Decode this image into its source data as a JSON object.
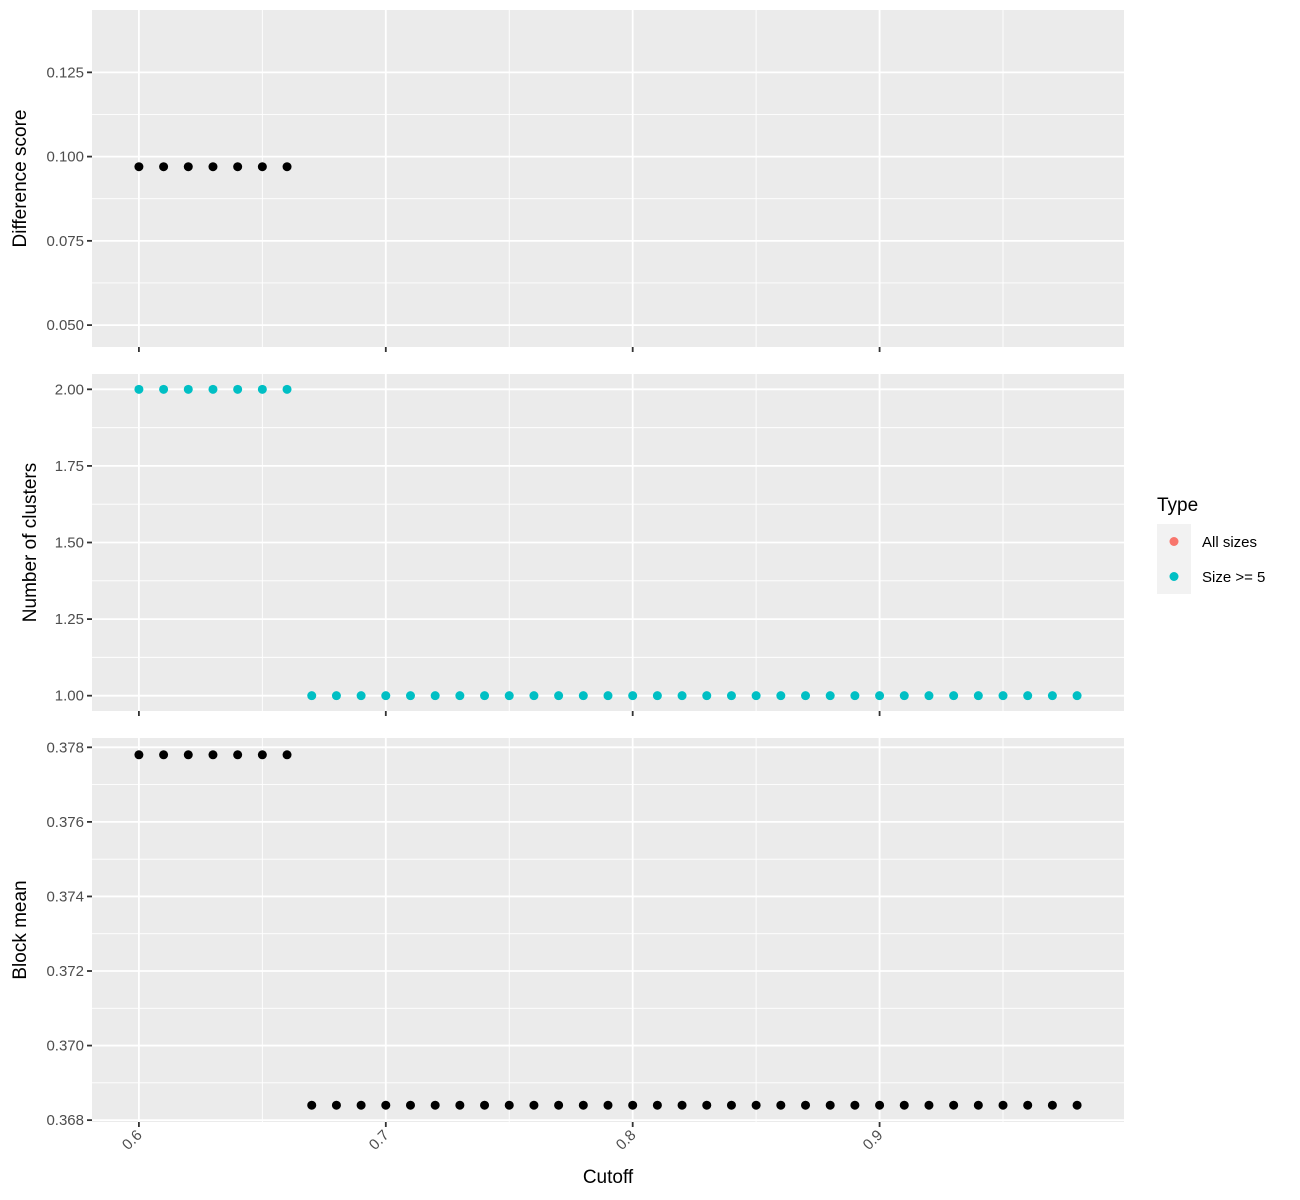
{
  "chart_data": [
    {
      "type": "scatter",
      "panel": "top",
      "ylabel": "Difference score",
      "ylim": [
        0.0435,
        0.1435
      ],
      "y_ticks": [
        0.05,
        0.075,
        0.1,
        0.125
      ],
      "y_tick_labels": [
        "0.050",
        "0.075",
        "0.100",
        "0.125"
      ],
      "grid": true,
      "series": [
        {
          "color": "#000000",
          "x": [
            0.6,
            0.61,
            0.62,
            0.63,
            0.64,
            0.65,
            0.66
          ],
          "y": [
            0.097,
            0.097,
            0.097,
            0.097,
            0.097,
            0.097,
            0.097
          ]
        }
      ]
    },
    {
      "type": "scatter",
      "panel": "middle",
      "ylabel": "Number of clusters",
      "ylim": [
        0.95,
        2.05
      ],
      "y_ticks": [
        1.0,
        1.25,
        1.5,
        1.75,
        2.0
      ],
      "y_tick_labels": [
        "1.00",
        "1.25",
        "1.50",
        "1.75",
        "2.00"
      ],
      "grid": true,
      "series": [
        {
          "color": "#00BFC4",
          "x": [
            0.6,
            0.61,
            0.62,
            0.63,
            0.64,
            0.65,
            0.66,
            0.67,
            0.68,
            0.69,
            0.7,
            0.71,
            0.72,
            0.73,
            0.74,
            0.75,
            0.76,
            0.77,
            0.78,
            0.79,
            0.8,
            0.81,
            0.82,
            0.83,
            0.84,
            0.85,
            0.86,
            0.87,
            0.88,
            0.89,
            0.9,
            0.91,
            0.92,
            0.93,
            0.94,
            0.95,
            0.96,
            0.97,
            0.98
          ],
          "y": [
            2,
            2,
            2,
            2,
            2,
            2,
            2,
            1,
            1,
            1,
            1,
            1,
            1,
            1,
            1,
            1,
            1,
            1,
            1,
            1,
            1,
            1,
            1,
            1,
            1,
            1,
            1,
            1,
            1,
            1,
            1,
            1,
            1,
            1,
            1,
            1,
            1,
            1,
            1
          ]
        }
      ]
    },
    {
      "type": "scatter",
      "panel": "bottom",
      "ylabel": "Block mean",
      "xlabel": "Cutoff",
      "ylim": [
        0.36795,
        0.37825
      ],
      "y_ticks": [
        0.368,
        0.37,
        0.372,
        0.374,
        0.376,
        0.378
      ],
      "y_tick_labels": [
        "0.368",
        "0.370",
        "0.372",
        "0.374",
        "0.376",
        "0.378"
      ],
      "grid": true,
      "series": [
        {
          "color": "#000000",
          "x": [
            0.6,
            0.61,
            0.62,
            0.63,
            0.64,
            0.65,
            0.66,
            0.67,
            0.68,
            0.69,
            0.7,
            0.71,
            0.72,
            0.73,
            0.74,
            0.75,
            0.76,
            0.77,
            0.78,
            0.79,
            0.8,
            0.81,
            0.82,
            0.83,
            0.84,
            0.85,
            0.86,
            0.87,
            0.88,
            0.89,
            0.9,
            0.91,
            0.92,
            0.93,
            0.94,
            0.95,
            0.96,
            0.97,
            0.98
          ],
          "y": [
            0.3778,
            0.3778,
            0.3778,
            0.3778,
            0.3778,
            0.3778,
            0.3778,
            0.3684,
            0.3684,
            0.3684,
            0.3684,
            0.3684,
            0.3684,
            0.3684,
            0.3684,
            0.3684,
            0.3684,
            0.3684,
            0.3684,
            0.3684,
            0.3684,
            0.3684,
            0.3684,
            0.3684,
            0.3684,
            0.3684,
            0.3684,
            0.3684,
            0.3684,
            0.3684,
            0.3684,
            0.3684,
            0.3684,
            0.3684,
            0.3684,
            0.3684,
            0.3684,
            0.3684,
            0.3684
          ]
        }
      ]
    }
  ],
  "x_axis": {
    "xlim": [
      0.581,
      0.999
    ],
    "ticks": [
      0.6,
      0.7,
      0.8,
      0.9
    ],
    "tick_labels": [
      "0.6",
      "0.7",
      "0.8",
      "0.9"
    ],
    "tick_label_rotation": -45,
    "title": "Cutoff"
  },
  "legend": {
    "title": "Type",
    "placement": "right",
    "items": [
      {
        "label": "All sizes",
        "color": "#F8766D"
      },
      {
        "label": "Size >= 5",
        "color": "#00BFC4"
      }
    ]
  }
}
